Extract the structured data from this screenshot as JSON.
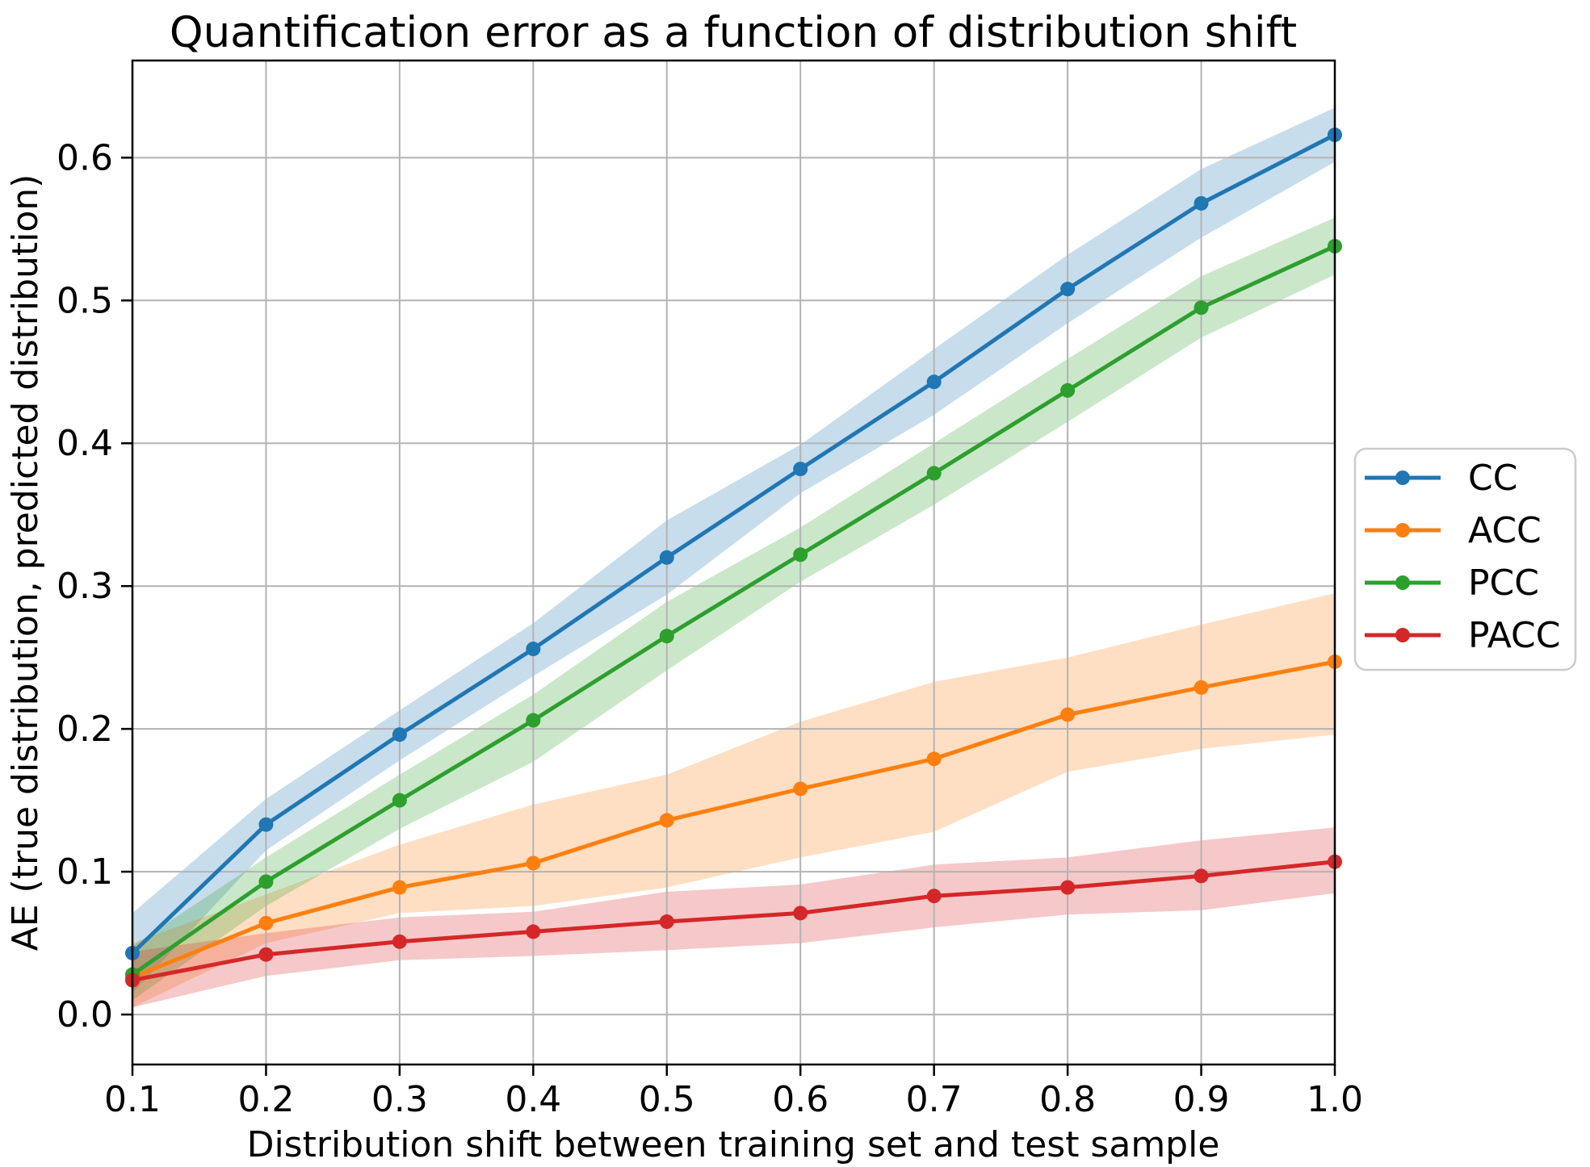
{
  "chart_data": {
    "type": "line",
    "title": "Quantification error as a function of distribution shift",
    "xlabel": "Distribution shift between training set and test sample",
    "ylabel": "AE (true distribution, predicted distribution)",
    "grid": true,
    "legend_position": "outside-right",
    "band_alpha": 0.25,
    "xlim": [
      0.1,
      1.0
    ],
    "ylim": [
      -0.035,
      0.668
    ],
    "x": [
      0.1,
      0.2,
      0.3,
      0.4,
      0.5,
      0.6,
      0.7,
      0.8,
      0.9,
      1.0
    ],
    "xtick_labels": [
      "0.1",
      "0.2",
      "0.3",
      "0.4",
      "0.5",
      "0.6",
      "0.7",
      "0.8",
      "0.9",
      "1.0"
    ],
    "ytick_values": [
      0.0,
      0.1,
      0.2,
      0.3,
      0.4,
      0.5,
      0.6
    ],
    "ytick_labels": [
      "0.0",
      "0.1",
      "0.2",
      "0.3",
      "0.4",
      "0.5",
      "0.6"
    ],
    "series": [
      {
        "name": "CC",
        "color": "#1f77b4",
        "values": [
          0.043,
          0.133,
          0.196,
          0.256,
          0.32,
          0.382,
          0.443,
          0.508,
          0.568,
          0.616
        ],
        "lower": [
          0.015,
          0.115,
          0.178,
          0.237,
          0.294,
          0.365,
          0.42,
          0.484,
          0.544,
          0.597
        ],
        "upper": [
          0.071,
          0.151,
          0.213,
          0.274,
          0.346,
          0.399,
          0.466,
          0.532,
          0.592,
          0.635
        ]
      },
      {
        "name": "ACC",
        "color": "#ff7f0e",
        "values": [
          0.026,
          0.064,
          0.089,
          0.106,
          0.136,
          0.158,
          0.179,
          0.21,
          0.229,
          0.247
        ],
        "lower": [
          0.005,
          0.05,
          0.071,
          0.076,
          0.089,
          0.11,
          0.128,
          0.17,
          0.186,
          0.196
        ],
        "upper": [
          0.05,
          0.084,
          0.119,
          0.147,
          0.168,
          0.205,
          0.233,
          0.25,
          0.273,
          0.295
        ]
      },
      {
        "name": "PCC",
        "color": "#2ca02c",
        "values": [
          0.028,
          0.093,
          0.15,
          0.206,
          0.265,
          0.322,
          0.379,
          0.437,
          0.495,
          0.538
        ],
        "lower": [
          0.01,
          0.076,
          0.13,
          0.177,
          0.241,
          0.303,
          0.357,
          0.415,
          0.474,
          0.518
        ],
        "upper": [
          0.048,
          0.11,
          0.168,
          0.224,
          0.289,
          0.341,
          0.4,
          0.459,
          0.517,
          0.558
        ]
      },
      {
        "name": "PACC",
        "color": "#d62728",
        "values": [
          0.024,
          0.042,
          0.051,
          0.058,
          0.065,
          0.071,
          0.083,
          0.089,
          0.097,
          0.107
        ],
        "lower": [
          0.005,
          0.027,
          0.038,
          0.041,
          0.045,
          0.05,
          0.061,
          0.07,
          0.073,
          0.085
        ],
        "upper": [
          0.044,
          0.057,
          0.068,
          0.072,
          0.086,
          0.091,
          0.105,
          0.11,
          0.122,
          0.131
        ]
      }
    ]
  }
}
